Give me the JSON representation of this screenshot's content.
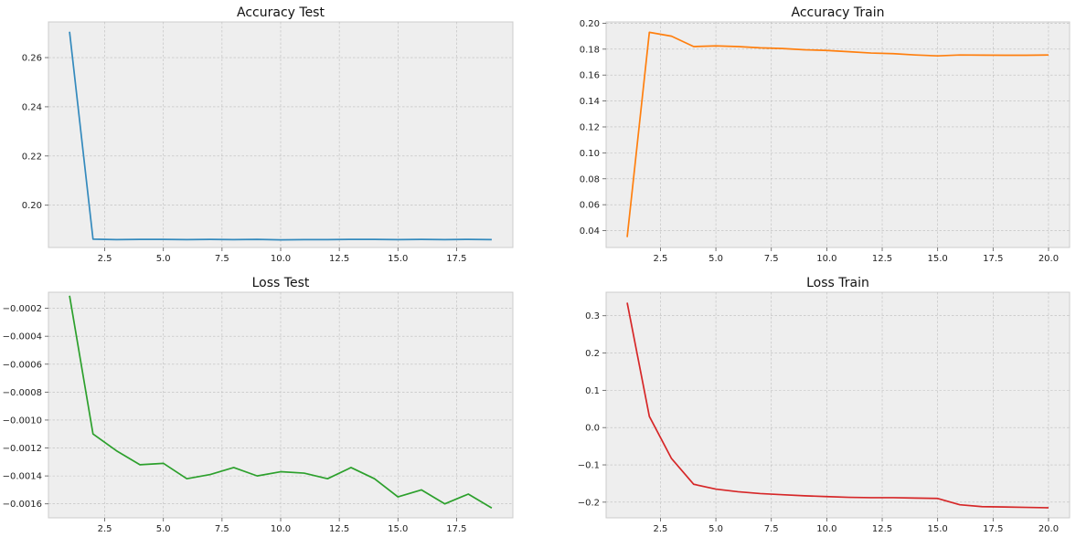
{
  "chart_data": [
    {
      "type": "line",
      "title": "Accuracy Test",
      "xlabel": "",
      "ylabel": "",
      "xlim": [
        0.1,
        19.9
      ],
      "ylim": [
        0.1828,
        0.2745
      ],
      "xticks": [
        2.5,
        5.0,
        7.5,
        10.0,
        12.5,
        15.0,
        17.5
      ],
      "xtick_labels": [
        "2.5",
        "5.0",
        "7.5",
        "10.0",
        "12.5",
        "15.0",
        "17.5"
      ],
      "yticks": [
        0.2,
        0.22,
        0.24,
        0.26
      ],
      "ytick_labels": [
        "0.20",
        "0.22",
        "0.24",
        "0.26"
      ],
      "grid": true,
      "series": [
        {
          "color": "#348abd",
          "x": [
            1,
            2,
            3,
            4,
            5,
            6,
            7,
            8,
            9,
            10,
            11,
            12,
            13,
            14,
            15,
            16,
            17,
            18,
            19
          ],
          "y": [
            0.2705,
            0.1862,
            0.186,
            0.1861,
            0.1861,
            0.186,
            0.1861,
            0.186,
            0.1861,
            0.1859,
            0.186,
            0.186,
            0.1861,
            0.1861,
            0.186,
            0.1861,
            0.186,
            0.1861,
            0.186
          ]
        }
      ]
    },
    {
      "type": "line",
      "title": "Accuracy Train",
      "xlabel": "",
      "ylabel": "",
      "xlim": [
        0.05,
        20.95
      ],
      "ylim": [
        0.027,
        0.201
      ],
      "xticks": [
        2.5,
        5.0,
        7.5,
        10.0,
        12.5,
        15.0,
        17.5,
        20.0
      ],
      "xtick_labels": [
        "2.5",
        "5.0",
        "7.5",
        "10.0",
        "12.5",
        "15.0",
        "17.5",
        "20.0"
      ],
      "yticks": [
        0.04,
        0.06,
        0.08,
        0.1,
        0.12,
        0.14,
        0.16,
        0.18,
        0.2
      ],
      "ytick_labels": [
        "0.04",
        "0.06",
        "0.08",
        "0.10",
        "0.12",
        "0.14",
        "0.16",
        "0.18",
        "0.20"
      ],
      "grid": true,
      "series": [
        {
          "color": "#ff7f0e",
          "x": [
            1,
            2,
            3,
            4,
            5,
            6,
            7,
            8,
            9,
            10,
            11,
            12,
            13,
            14,
            15,
            16,
            17,
            18,
            19,
            20
          ],
          "y": [
            0.035,
            0.193,
            0.19,
            0.182,
            0.1825,
            0.182,
            0.181,
            0.1805,
            0.1795,
            0.179,
            0.178,
            0.177,
            0.1765,
            0.1755,
            0.1748,
            0.1755,
            0.1754,
            0.1753,
            0.1753,
            0.1755
          ]
        }
      ]
    },
    {
      "type": "line",
      "title": "Loss Test",
      "xlabel": "",
      "ylabel": "",
      "xlim": [
        0.1,
        19.9
      ],
      "ylim": [
        -0.0017,
        -8.5e-05
      ],
      "xticks": [
        2.5,
        5.0,
        7.5,
        10.0,
        12.5,
        15.0,
        17.5
      ],
      "xtick_labels": [
        "2.5",
        "5.0",
        "7.5",
        "10.0",
        "12.5",
        "15.0",
        "17.5"
      ],
      "yticks": [
        -0.0016,
        -0.0014,
        -0.0012,
        -0.001,
        -0.0008,
        -0.0006,
        -0.0004,
        -0.0002
      ],
      "ytick_labels": [
        "−0.0016",
        "−0.0014",
        "−0.0012",
        "−0.0010",
        "−0.0008",
        "−0.0006",
        "−0.0004",
        "−0.0002"
      ],
      "grid": true,
      "series": [
        {
          "color": "#2ca02c",
          "x": [
            1,
            2,
            3,
            4,
            5,
            6,
            7,
            8,
            9,
            10,
            11,
            12,
            13,
            14,
            15,
            16,
            17,
            18,
            19
          ],
          "y": [
            -0.00011,
            -0.0011,
            -0.00122,
            -0.00132,
            -0.00131,
            -0.00142,
            -0.00139,
            -0.00134,
            -0.0014,
            -0.00137,
            -0.00138,
            -0.00142,
            -0.00134,
            -0.00142,
            -0.00155,
            -0.0015,
            -0.0016,
            -0.00153,
            -0.00163
          ]
        }
      ]
    },
    {
      "type": "line",
      "title": "Loss Train",
      "xlabel": "",
      "ylabel": "",
      "xlim": [
        0.05,
        20.95
      ],
      "ylim": [
        -0.242,
        0.363
      ],
      "xticks": [
        2.5,
        5.0,
        7.5,
        10.0,
        12.5,
        15.0,
        17.5,
        20.0
      ],
      "xtick_labels": [
        "2.5",
        "5.0",
        "7.5",
        "10.0",
        "12.5",
        "15.0",
        "17.5",
        "20.0"
      ],
      "yticks": [
        -0.2,
        -0.1,
        0.0,
        0.1,
        0.2,
        0.3
      ],
      "ytick_labels": [
        "−0.2",
        "−0.1",
        "0.0",
        "0.1",
        "0.2",
        "0.3"
      ],
      "grid": true,
      "series": [
        {
          "color": "#d62728",
          "x": [
            1,
            2,
            3,
            4,
            5,
            6,
            7,
            8,
            9,
            10,
            11,
            12,
            13,
            14,
            15,
            16,
            17,
            18,
            19,
            20
          ],
          "y": [
            0.335,
            0.03,
            -0.083,
            -0.152,
            -0.165,
            -0.172,
            -0.177,
            -0.18,
            -0.183,
            -0.185,
            -0.187,
            -0.188,
            -0.188,
            -0.189,
            -0.19,
            -0.207,
            -0.212,
            -0.213,
            -0.214,
            -0.215
          ]
        }
      ]
    }
  ]
}
